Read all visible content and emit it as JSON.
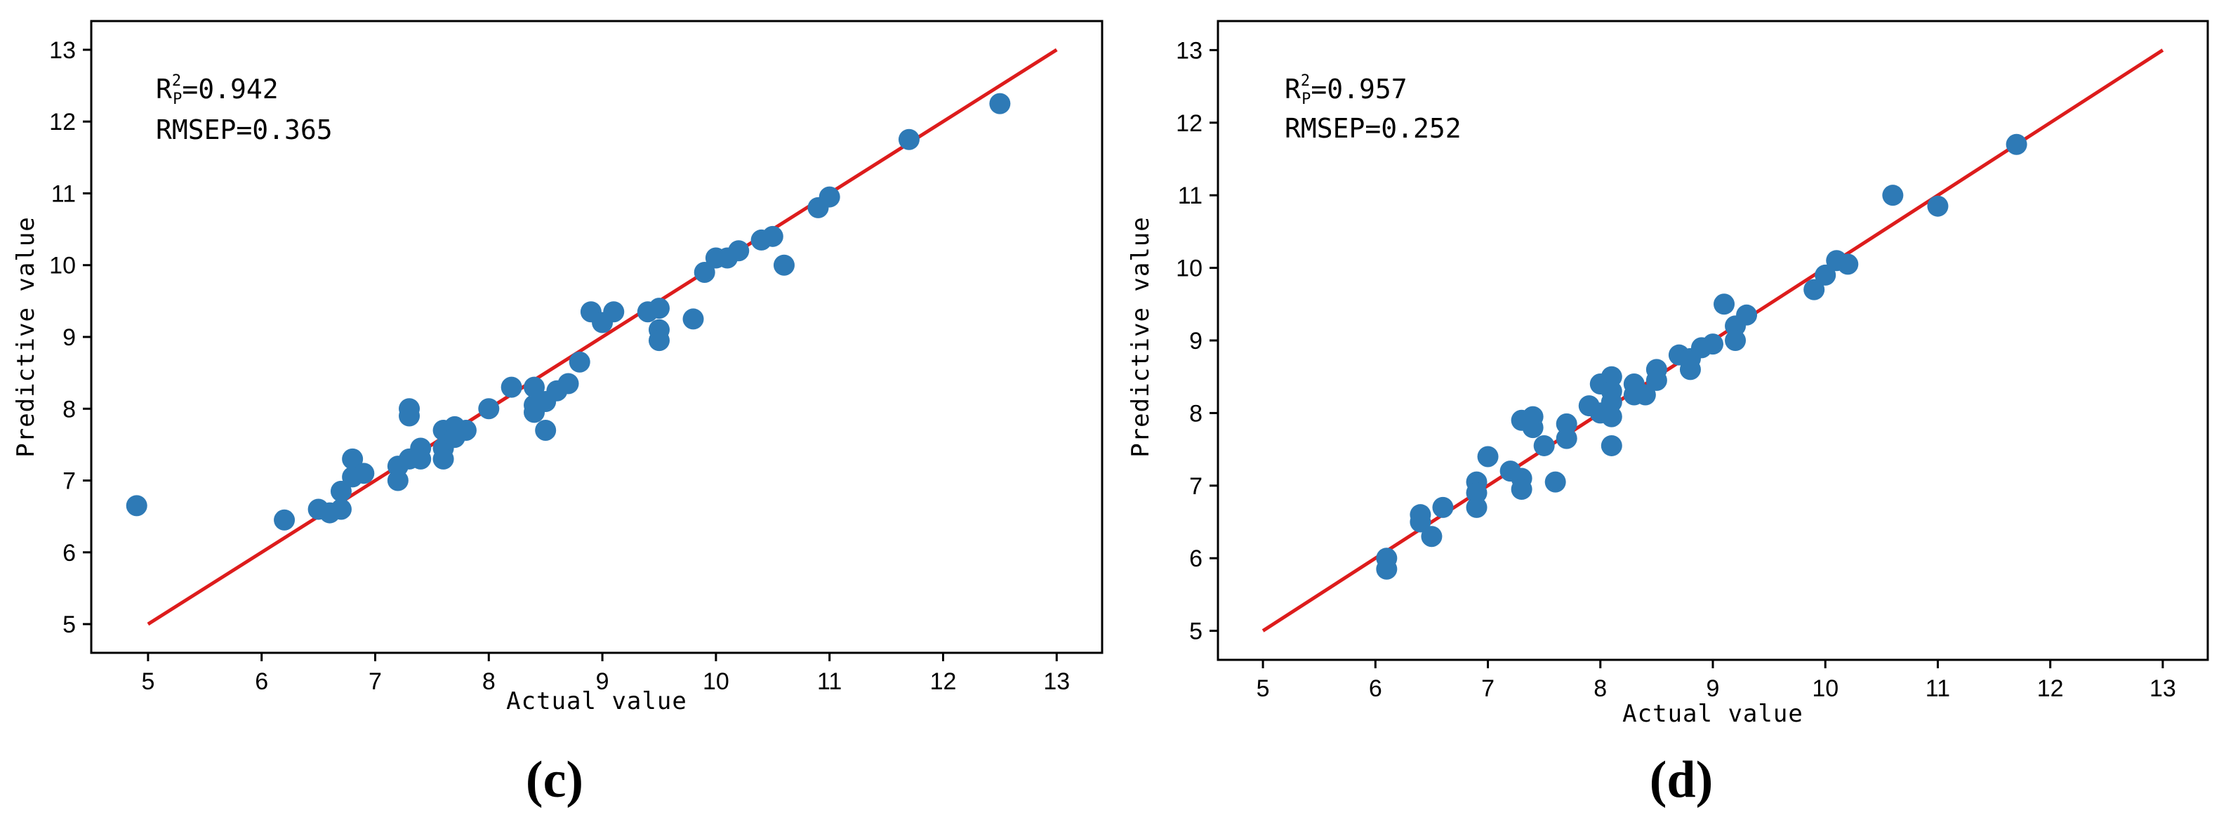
{
  "chart_data": [
    {
      "type": "scatter",
      "panel_label": "(c)",
      "xlabel": "Actual value",
      "ylabel": "Predictive value",
      "xlim": [
        4.5,
        13.4
      ],
      "ylim": [
        4.6,
        13.4
      ],
      "xticks": [
        5,
        6,
        7,
        8,
        9,
        10,
        11,
        12,
        13
      ],
      "yticks": [
        5,
        6,
        7,
        8,
        9,
        10,
        11,
        12,
        13
      ],
      "stats": {
        "r2_base": "R",
        "r2_sup": "2",
        "r2_sub": "P",
        "r2_value": "=0.942",
        "rmsep": "RMSEP=0.365"
      },
      "fit_line": {
        "x": [
          5,
          13
        ],
        "y": [
          5,
          13
        ],
        "color": "#dd1c1c"
      },
      "point_color": "#2e7ab6",
      "points": [
        [
          4.9,
          6.65
        ],
        [
          6.2,
          6.45
        ],
        [
          6.5,
          6.6
        ],
        [
          6.6,
          6.55
        ],
        [
          6.7,
          6.85
        ],
        [
          6.7,
          6.6
        ],
        [
          6.8,
          7.05
        ],
        [
          6.8,
          7.3
        ],
        [
          6.9,
          7.1
        ],
        [
          7.2,
          7.2
        ],
        [
          7.2,
          7.0
        ],
        [
          7.3,
          8.0
        ],
        [
          7.3,
          7.9
        ],
        [
          7.3,
          7.3
        ],
        [
          7.4,
          7.45
        ],
        [
          7.4,
          7.3
        ],
        [
          7.6,
          7.7
        ],
        [
          7.6,
          7.45
        ],
        [
          7.6,
          7.3
        ],
        [
          7.7,
          7.75
        ],
        [
          7.7,
          7.6
        ],
        [
          7.8,
          7.7
        ],
        [
          8.0,
          8.0
        ],
        [
          8.2,
          8.3
        ],
        [
          8.4,
          8.3
        ],
        [
          8.4,
          8.05
        ],
        [
          8.4,
          7.95
        ],
        [
          8.5,
          8.1
        ],
        [
          8.5,
          7.7
        ],
        [
          8.6,
          8.25
        ],
        [
          8.7,
          8.35
        ],
        [
          8.8,
          8.65
        ],
        [
          8.9,
          9.35
        ],
        [
          9.0,
          9.2
        ],
        [
          9.1,
          9.35
        ],
        [
          9.4,
          9.35
        ],
        [
          9.5,
          9.4
        ],
        [
          9.5,
          9.1
        ],
        [
          9.5,
          8.95
        ],
        [
          9.8,
          9.25
        ],
        [
          9.9,
          9.9
        ],
        [
          10.0,
          10.1
        ],
        [
          10.1,
          10.1
        ],
        [
          10.2,
          10.2
        ],
        [
          10.4,
          10.35
        ],
        [
          10.5,
          10.4
        ],
        [
          10.6,
          10.0
        ],
        [
          10.9,
          10.8
        ],
        [
          11.0,
          10.95
        ],
        [
          11.7,
          11.75
        ],
        [
          12.5,
          12.25
        ]
      ]
    },
    {
      "type": "scatter",
      "panel_label": "(d)",
      "xlabel": "Actual value",
      "ylabel": "Predictive value",
      "xlim": [
        4.6,
        13.4
      ],
      "ylim": [
        4.6,
        13.4
      ],
      "xticks": [
        5,
        6,
        7,
        8,
        9,
        10,
        11,
        12,
        13
      ],
      "yticks": [
        5,
        6,
        7,
        8,
        9,
        10,
        11,
        12,
        13
      ],
      "stats": {
        "r2_base": "R",
        "r2_sup": "2",
        "r2_sub": "P",
        "r2_value": "=0.957",
        "rmsep": "RMSEP=0.252"
      },
      "fit_line": {
        "x": [
          5,
          13
        ],
        "y": [
          5,
          13
        ],
        "color": "#dd1c1c"
      },
      "point_color": "#2e7ab6",
      "points": [
        [
          6.1,
          6.0
        ],
        [
          6.1,
          5.85
        ],
        [
          6.4,
          6.6
        ],
        [
          6.4,
          6.5
        ],
        [
          6.5,
          6.3
        ],
        [
          6.6,
          6.7
        ],
        [
          6.9,
          7.05
        ],
        [
          6.9,
          6.9
        ],
        [
          6.9,
          6.7
        ],
        [
          7.0,
          7.4
        ],
        [
          7.2,
          7.2
        ],
        [
          7.3,
          7.1
        ],
        [
          7.3,
          6.95
        ],
        [
          7.3,
          7.9
        ],
        [
          7.4,
          7.95
        ],
        [
          7.4,
          7.8
        ],
        [
          7.5,
          7.55
        ],
        [
          7.6,
          7.05
        ],
        [
          7.7,
          7.85
        ],
        [
          7.7,
          7.65
        ],
        [
          7.9,
          8.1
        ],
        [
          8.0,
          8.4
        ],
        [
          8.0,
          8.0
        ],
        [
          8.1,
          8.5
        ],
        [
          8.1,
          8.3
        ],
        [
          8.1,
          8.15
        ],
        [
          8.1,
          7.95
        ],
        [
          8.1,
          7.55
        ],
        [
          8.3,
          8.4
        ],
        [
          8.3,
          8.25
        ],
        [
          8.4,
          8.25
        ],
        [
          8.5,
          8.6
        ],
        [
          8.5,
          8.45
        ],
        [
          8.7,
          8.8
        ],
        [
          8.8,
          8.6
        ],
        [
          8.8,
          8.75
        ],
        [
          8.9,
          8.9
        ],
        [
          9.0,
          8.95
        ],
        [
          9.1,
          9.5
        ],
        [
          9.2,
          9.2
        ],
        [
          9.2,
          9.0
        ],
        [
          9.3,
          9.35
        ],
        [
          9.9,
          9.7
        ],
        [
          10.0,
          9.9
        ],
        [
          10.1,
          10.1
        ],
        [
          10.2,
          10.05
        ],
        [
          10.6,
          11.0
        ],
        [
          11.0,
          10.85
        ],
        [
          11.7,
          11.7
        ]
      ]
    }
  ]
}
